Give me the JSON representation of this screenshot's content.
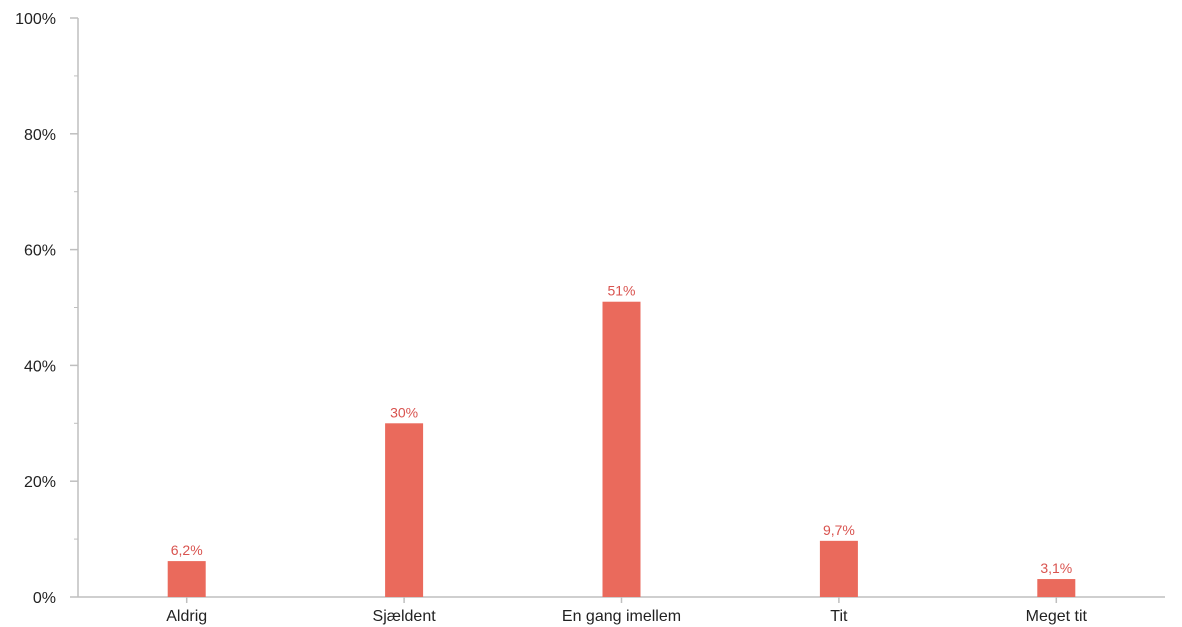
{
  "chart_data": {
    "type": "bar",
    "categories": [
      "Aldrig",
      "Sjældent",
      "En gang imellem",
      "Tit",
      "Meget tit"
    ],
    "values": [
      6.2,
      30,
      51,
      9.7,
      3.1
    ],
    "value_labels": [
      "6,2%",
      "30%",
      "51%",
      "9,7%",
      "3,1%"
    ],
    "title": "",
    "xlabel": "",
    "ylabel": "",
    "ylim": [
      0,
      100
    ],
    "yticks": [
      0,
      20,
      40,
      60,
      80,
      100
    ],
    "ytick_labels": [
      "0%",
      "20%",
      "40%",
      "60%",
      "80%",
      "100%"
    ],
    "grid": false,
    "colors": {
      "bar": "#EA6A5C",
      "label": "#D9534F",
      "axis": "#BFBFBF",
      "text": "#222222"
    }
  }
}
